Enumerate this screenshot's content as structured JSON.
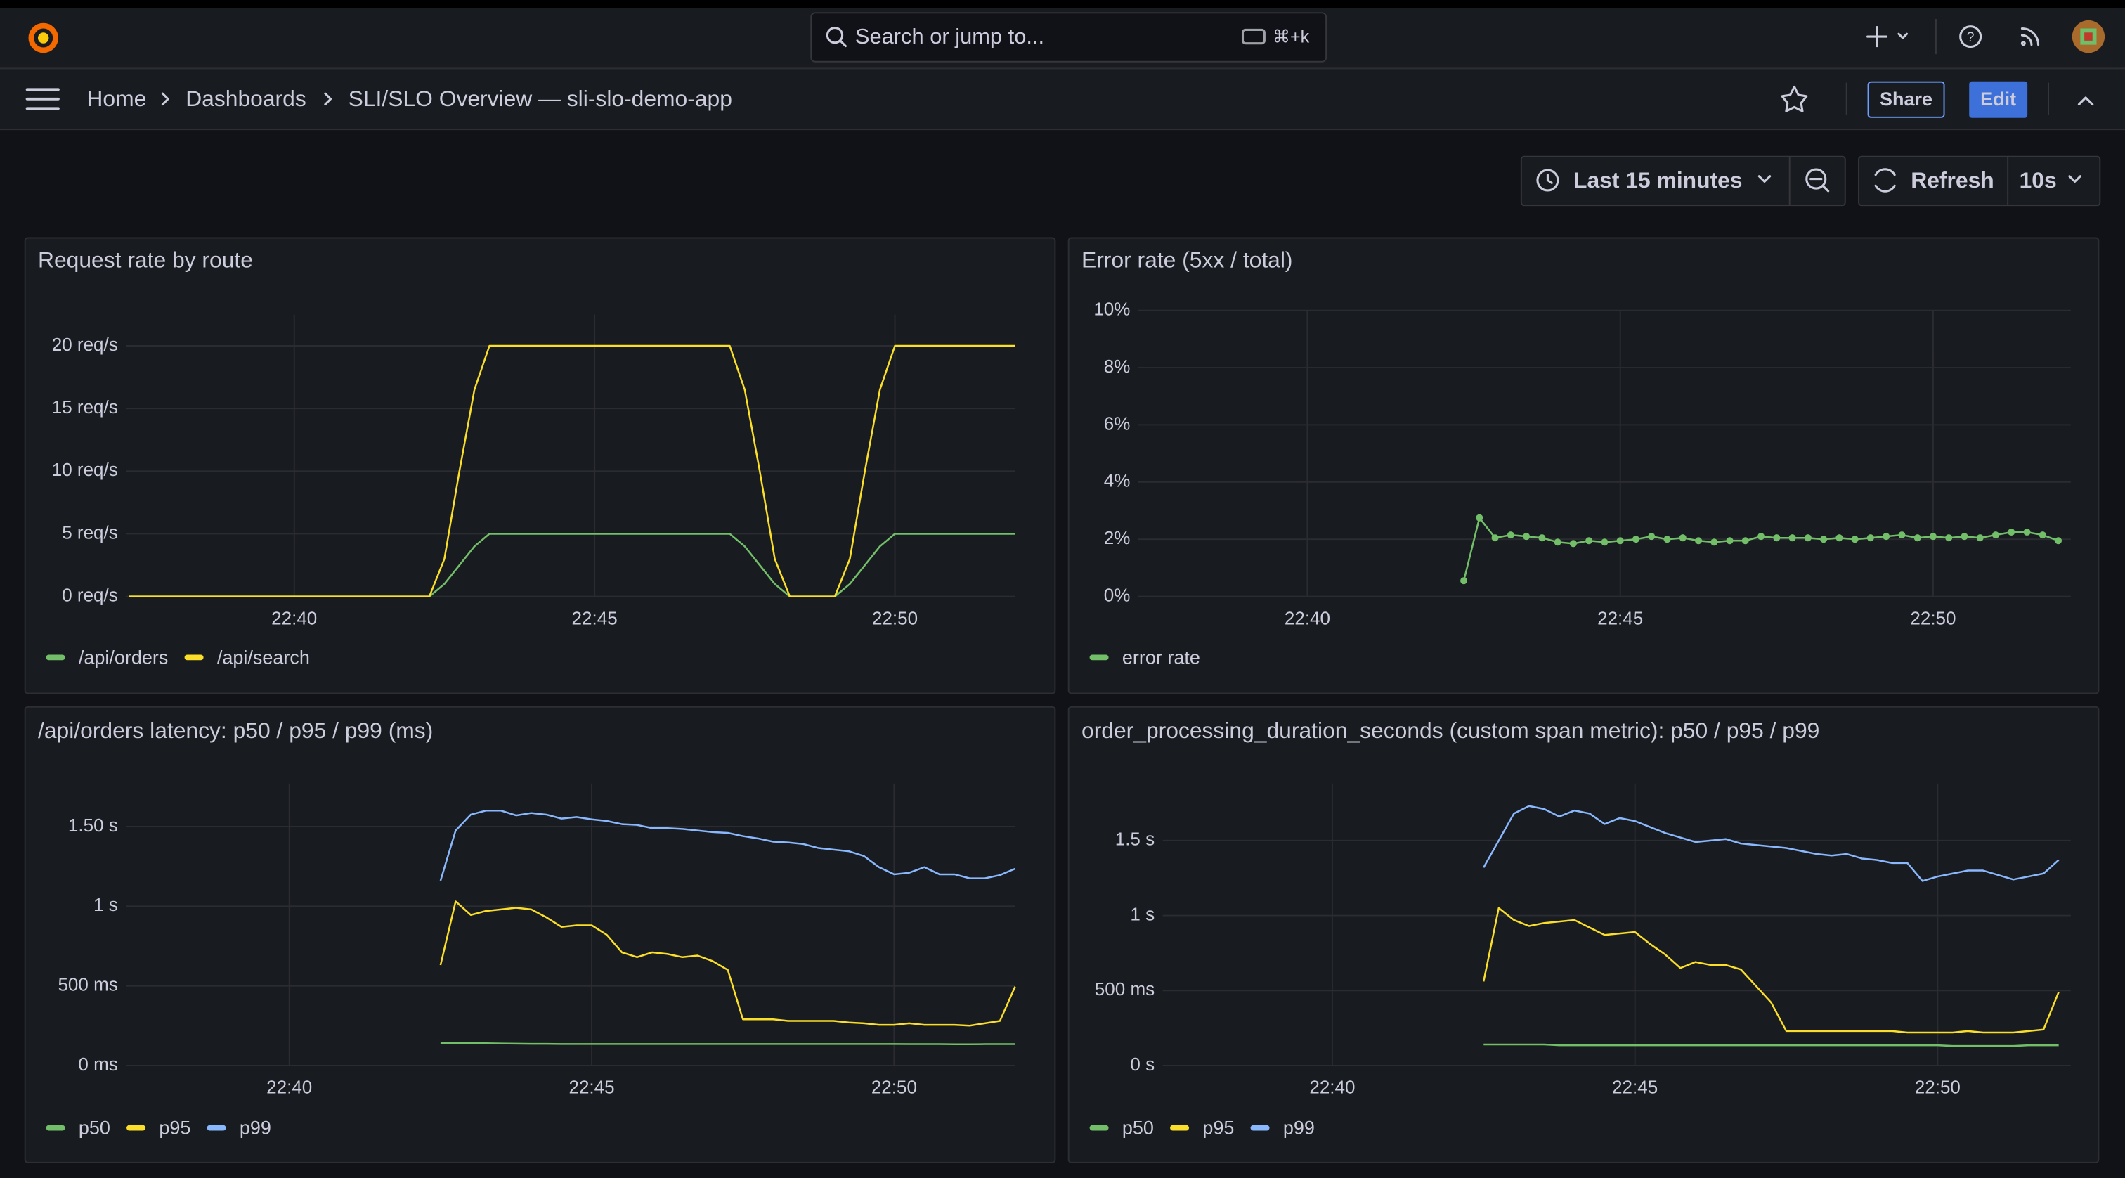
{
  "topbar": {
    "search_placeholder": "Search or jump to...",
    "shortcut": "⌘+k"
  },
  "breadcrumbs": [
    "Home",
    "Dashboards",
    "SLI/SLO Overview — sli-slo-demo-app"
  ],
  "actions": {
    "share": "Share",
    "edit": "Edit"
  },
  "time_picker": {
    "range": "Last 15 minutes",
    "refresh": "Refresh",
    "interval": "10s"
  },
  "chart_data": [
    {
      "type": "line",
      "title": "Request rate by route",
      "x": [
        1357.25,
        1357.5,
        1357.75,
        1358,
        1358.25,
        1358.5,
        1358.75,
        1359,
        1359.25,
        1359.5,
        1359.75,
        1360,
        1360.25,
        1360.5,
        1360.75,
        1361,
        1361.25,
        1361.5,
        1361.75,
        1362,
        1362.25,
        1362.5,
        1362.75,
        1363,
        1363.25,
        1363.5,
        1363.75,
        1364,
        1364.25,
        1364.5,
        1364.75,
        1365,
        1365.25,
        1365.5,
        1365.75,
        1366,
        1366.25,
        1366.5,
        1366.75,
        1367,
        1367.25,
        1367.5,
        1367.75,
        1368,
        1368.25,
        1368.5,
        1368.75,
        1369,
        1369.25,
        1369.5,
        1369.75,
        1370,
        1370.25,
        1370.5,
        1370.75,
        1371,
        1371.25,
        1371.5,
        1371.75,
        1372
      ],
      "xlim": [
        1357.2,
        1372.0
      ],
      "xticks": [
        {
          "value": 1360,
          "label": "22:40"
        },
        {
          "value": 1365,
          "label": "22:45"
        },
        {
          "value": 1370,
          "label": "22:50"
        }
      ],
      "ylim": [
        0,
        22.5
      ],
      "yticks": [
        {
          "value": 0,
          "label": "0 req/s"
        },
        {
          "value": 5,
          "label": "5 req/s"
        },
        {
          "value": 10,
          "label": "10 req/s"
        },
        {
          "value": 15,
          "label": "15 req/s"
        },
        {
          "value": 20,
          "label": "20 req/s"
        }
      ],
      "grid": true,
      "legend": "bottom",
      "series": [
        {
          "name": "/api/orders",
          "color": "#73bf69",
          "values": [
            0,
            0,
            0,
            0,
            0,
            0,
            0,
            0,
            0,
            0,
            0,
            0,
            0,
            0,
            0,
            0,
            0,
            0,
            0,
            0,
            0,
            1,
            2.5,
            4,
            5,
            5,
            5,
            5,
            5,
            5,
            5,
            5,
            5,
            5,
            5,
            5,
            5,
            5,
            5,
            5,
            5,
            4,
            2.5,
            1,
            0,
            0,
            0,
            0,
            1,
            2.5,
            4,
            5,
            5,
            5,
            5,
            5,
            5,
            5,
            5,
            5
          ]
        },
        {
          "name": "/api/search",
          "color": "#fade2a",
          "values": [
            0,
            0,
            0,
            0,
            0,
            0,
            0,
            0,
            0,
            0,
            0,
            0,
            0,
            0,
            0,
            0,
            0,
            0,
            0,
            0,
            0,
            3,
            10,
            16.5,
            20,
            20,
            20,
            20,
            20,
            20,
            20,
            20,
            20,
            20,
            20,
            20,
            20,
            20,
            20,
            20,
            20,
            16.5,
            10,
            3,
            0,
            0,
            0,
            0,
            3,
            10,
            16.5,
            20,
            20,
            20,
            20,
            20,
            20,
            20,
            20,
            20
          ]
        }
      ]
    },
    {
      "type": "line",
      "title": "Error rate (5xx / total)",
      "points": true,
      "x": [
        1362.5,
        1362.75,
        1363,
        1363.25,
        1363.5,
        1363.75,
        1364,
        1364.25,
        1364.5,
        1364.75,
        1365,
        1365.25,
        1365.5,
        1365.75,
        1366,
        1366.25,
        1366.5,
        1366.75,
        1367,
        1367.25,
        1367.5,
        1367.75,
        1368,
        1368.25,
        1368.5,
        1368.75,
        1369,
        1369.25,
        1369.5,
        1369.75,
        1370,
        1370.25,
        1370.5,
        1370.75,
        1371,
        1371.25,
        1371.5,
        1371.75,
        1372
      ],
      "xlim": [
        1357.3,
        1372.2
      ],
      "xticks": [
        {
          "value": 1360,
          "label": "22:40"
        },
        {
          "value": 1365,
          "label": "22:45"
        },
        {
          "value": 1370,
          "label": "22:50"
        }
      ],
      "ylim": [
        0,
        10
      ],
      "yticks": [
        {
          "value": 0,
          "label": "0%"
        },
        {
          "value": 2,
          "label": "2%"
        },
        {
          "value": 4,
          "label": "4%"
        },
        {
          "value": 6,
          "label": "6%"
        },
        {
          "value": 8,
          "label": "8%"
        },
        {
          "value": 10,
          "label": "10%"
        }
      ],
      "grid": true,
      "legend": "bottom",
      "series": [
        {
          "name": "error rate",
          "color": "#73bf69",
          "values": [
            0.55,
            2.75,
            2.05,
            2.15,
            2.1,
            2.05,
            1.9,
            1.85,
            1.95,
            1.9,
            1.95,
            2.0,
            2.1,
            2.0,
            2.05,
            1.95,
            1.9,
            1.95,
            1.95,
            2.1,
            2.05,
            2.05,
            2.05,
            2.0,
            2.05,
            2.0,
            2.05,
            2.1,
            2.15,
            2.05,
            2.1,
            2.05,
            2.1,
            2.05,
            2.15,
            2.25,
            2.25,
            2.15,
            1.95
          ]
        }
      ]
    },
    {
      "type": "line",
      "title": "/api/orders latency: p50 / p95 / p99 (ms)",
      "x": [
        1362.5,
        1362.75,
        1363,
        1363.25,
        1363.5,
        1363.75,
        1364,
        1364.25,
        1364.5,
        1364.75,
        1365,
        1365.25,
        1365.5,
        1365.75,
        1366,
        1366.25,
        1366.5,
        1366.75,
        1367,
        1367.25,
        1367.5,
        1367.75,
        1368,
        1368.25,
        1368.5,
        1368.75,
        1369,
        1369.25,
        1369.5,
        1369.75,
        1370,
        1370.25,
        1370.5,
        1370.75,
        1371,
        1371.25,
        1371.5,
        1371.75,
        1372
      ],
      "xlim": [
        1357.3,
        1372.0
      ],
      "xticks": [
        {
          "value": 1360,
          "label": "22:40"
        },
        {
          "value": 1365,
          "label": "22:45"
        },
        {
          "value": 1370,
          "label": "22:50"
        }
      ],
      "ylim": [
        0,
        1770
      ],
      "yticks": [
        {
          "value": 0,
          "label": "0 ms"
        },
        {
          "value": 500,
          "label": "500 ms"
        },
        {
          "value": 1000,
          "label": "1 s"
        },
        {
          "value": 1500,
          "label": "1.50 s"
        }
      ],
      "grid": true,
      "legend": "bottom",
      "series": [
        {
          "name": "p50",
          "color": "#73bf69",
          "values": [
            140,
            140,
            140,
            140,
            138,
            137,
            136,
            136,
            135,
            135,
            135,
            135,
            135,
            135,
            135,
            135,
            135,
            135,
            135,
            135,
            135,
            135,
            135,
            135,
            135,
            135,
            135,
            135,
            135,
            135,
            135,
            134,
            134,
            134,
            133,
            133,
            134,
            134,
            134
          ]
        },
        {
          "name": "p95",
          "color": "#fade2a",
          "values": [
            630,
            1030,
            945,
            970,
            980,
            990,
            980,
            930,
            870,
            880,
            880,
            820,
            710,
            680,
            710,
            700,
            680,
            690,
            655,
            600,
            290,
            290,
            290,
            280,
            280,
            280,
            280,
            270,
            265,
            255,
            255,
            265,
            255,
            255,
            255,
            250,
            265,
            280,
            495
          ]
        },
        {
          "name": "p99",
          "color": "#8ab8ff",
          "values": [
            1160,
            1475,
            1575,
            1600,
            1600,
            1570,
            1585,
            1575,
            1550,
            1560,
            1545,
            1535,
            1515,
            1510,
            1490,
            1490,
            1485,
            1475,
            1465,
            1460,
            1440,
            1425,
            1405,
            1400,
            1390,
            1365,
            1355,
            1345,
            1315,
            1245,
            1200,
            1210,
            1245,
            1200,
            1200,
            1175,
            1175,
            1195,
            1235
          ]
        }
      ]
    },
    {
      "type": "line",
      "title": "order_processing_duration_seconds (custom span metric): p50 / p95 / p99",
      "x": [
        1362.5,
        1362.75,
        1363,
        1363.25,
        1363.5,
        1363.75,
        1364,
        1364.25,
        1364.5,
        1364.75,
        1365,
        1365.25,
        1365.5,
        1365.75,
        1366,
        1366.25,
        1366.5,
        1366.75,
        1367,
        1367.25,
        1367.5,
        1367.75,
        1368,
        1368.25,
        1368.5,
        1368.75,
        1369,
        1369.25,
        1369.5,
        1369.75,
        1370,
        1370.25,
        1370.5,
        1370.75,
        1371,
        1371.25,
        1371.5,
        1371.75,
        1372
      ],
      "xlim": [
        1357.2,
        1372.2
      ],
      "xticks": [
        {
          "value": 1360,
          "label": "22:40"
        },
        {
          "value": 1365,
          "label": "22:45"
        },
        {
          "value": 1370,
          "label": "22:50"
        }
      ],
      "ylim": [
        0,
        1.88
      ],
      "yticks": [
        {
          "value": 0,
          "label": "0 s"
        },
        {
          "value": 0.5,
          "label": "500 ms"
        },
        {
          "value": 1,
          "label": "1 s"
        },
        {
          "value": 1.5,
          "label": "1.5 s"
        }
      ],
      "grid": true,
      "legend": "bottom",
      "series": [
        {
          "name": "p50",
          "color": "#73bf69",
          "values": [
            0.14,
            0.14,
            0.14,
            0.14,
            0.14,
            0.135,
            0.135,
            0.135,
            0.135,
            0.135,
            0.135,
            0.135,
            0.135,
            0.135,
            0.135,
            0.135,
            0.135,
            0.135,
            0.135,
            0.135,
            0.135,
            0.135,
            0.135,
            0.135,
            0.135,
            0.135,
            0.135,
            0.135,
            0.135,
            0.135,
            0.135,
            0.13,
            0.13,
            0.13,
            0.13,
            0.13,
            0.135,
            0.135,
            0.135
          ]
        },
        {
          "name": "p95",
          "color": "#fade2a",
          "values": [
            0.56,
            1.05,
            0.97,
            0.93,
            0.95,
            0.96,
            0.97,
            0.92,
            0.87,
            0.88,
            0.89,
            0.81,
            0.74,
            0.65,
            0.69,
            0.67,
            0.67,
            0.64,
            0.53,
            0.42,
            0.23,
            0.23,
            0.23,
            0.23,
            0.23,
            0.23,
            0.23,
            0.23,
            0.22,
            0.22,
            0.22,
            0.22,
            0.23,
            0.22,
            0.22,
            0.22,
            0.23,
            0.24,
            0.49
          ]
        },
        {
          "name": "p99",
          "color": "#8ab8ff",
          "values": [
            1.32,
            1.5,
            1.68,
            1.73,
            1.71,
            1.66,
            1.7,
            1.68,
            1.61,
            1.65,
            1.63,
            1.59,
            1.55,
            1.52,
            1.49,
            1.5,
            1.51,
            1.48,
            1.47,
            1.46,
            1.45,
            1.43,
            1.41,
            1.4,
            1.41,
            1.38,
            1.37,
            1.35,
            1.35,
            1.23,
            1.26,
            1.28,
            1.3,
            1.3,
            1.27,
            1.24,
            1.26,
            1.28,
            1.37
          ]
        }
      ]
    }
  ]
}
